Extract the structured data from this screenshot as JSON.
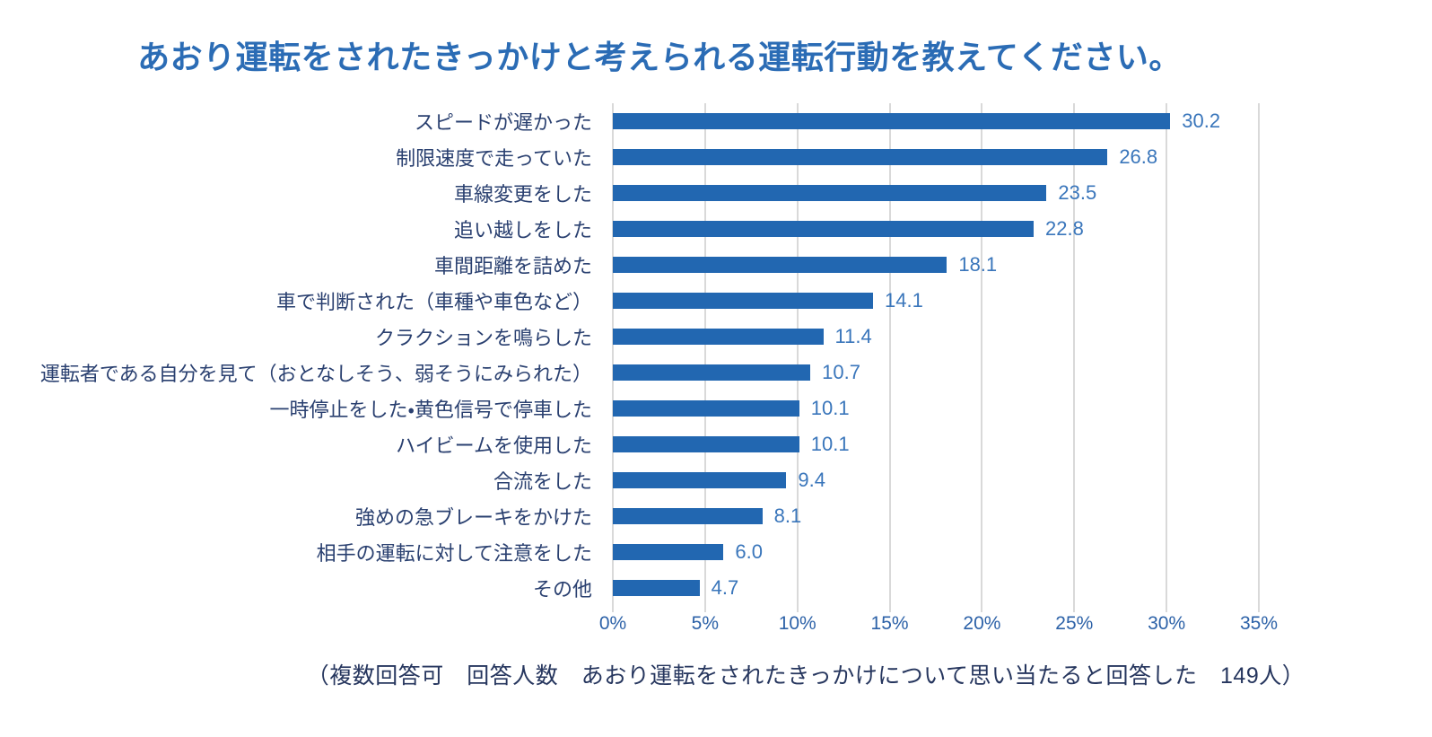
{
  "title": "あおり運転をされたきっかけと考えられる運転行動を教えてください。",
  "footer": "（複数回答可　回答人数　あおり運転をされたきっかけについて思い当たると回答した　149人）",
  "colors": {
    "title_text": "#2b6cb5",
    "bar_fill": "#2267b1",
    "value_label_text": "#3a76bb",
    "category_label_text": "#2a4070",
    "axis_label_text": "#2d62a8",
    "gridline": "#d9d9d9",
    "background": "#ffffff"
  },
  "chart_data": {
    "type": "bar",
    "orientation": "horizontal",
    "title": "あおり運転をされたきっかけと考えられる運転行動を教えてください。",
    "categories": [
      "スピードが遅かった",
      "制限速度で走っていた",
      "車線変更をした",
      "追い越しをした",
      "車間距離を詰めた",
      "車で判断された（車種や車色など）",
      "クラクションを鳴らした",
      "運転者である自分を見て（おとなしそう、弱そうにみられた）",
      "一時停止をした・黄色信号で停車した",
      "ハイビームを使用した",
      "合流をした",
      "強めの急ブレーキをかけた",
      "相手の運転に対して注意をした",
      "その他"
    ],
    "values": [
      30.2,
      26.8,
      23.5,
      22.8,
      18.1,
      14.1,
      11.4,
      10.7,
      10.1,
      10.1,
      9.4,
      8.1,
      6.0,
      4.7
    ],
    "value_labels": [
      "30.2",
      "26.8",
      "23.5",
      "22.8",
      "18.1",
      "14.1",
      "11.4",
      "10.7",
      "10.1",
      "10.1",
      "9.4",
      "8.1",
      "6.0",
      "4.7"
    ],
    "unit": "%",
    "xlabel": "",
    "ylabel": "",
    "xlim": [
      0,
      35
    ],
    "x_ticks": [
      "0%",
      "5%",
      "10%",
      "15%",
      "20%",
      "25%",
      "30%",
      "35%"
    ],
    "grid": true,
    "legend": false,
    "annotation": "（複数回答可　回答人数　あおり運転をされたきっかけについて思い当たると回答した　149人）"
  }
}
